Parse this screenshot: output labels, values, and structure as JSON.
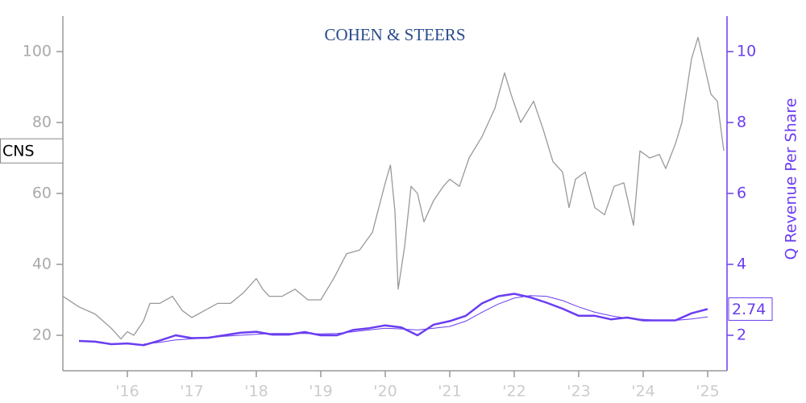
{
  "chart_data": {
    "type": "line",
    "logo": "COHEN & STEERS",
    "y2label": "Q Revenue Per Share",
    "xlim": [
      2015.0,
      2025.3
    ],
    "xticks": [
      {
        "value": 2016,
        "label": "'16"
      },
      {
        "value": 2017,
        "label": "'17"
      },
      {
        "value": 2018,
        "label": "'18"
      },
      {
        "value": 2019,
        "label": "'19"
      },
      {
        "value": 2020,
        "label": "'20"
      },
      {
        "value": 2021,
        "label": "'21"
      },
      {
        "value": 2022,
        "label": "'22"
      },
      {
        "value": 2023,
        "label": "'23"
      },
      {
        "value": 2024,
        "label": "'24"
      },
      {
        "value": 2025,
        "label": "'25"
      }
    ],
    "ylim": [
      10,
      110
    ],
    "yticks": [
      20,
      40,
      60,
      80,
      100
    ],
    "y2lim": [
      1,
      11
    ],
    "y2ticks": [
      2,
      4,
      6,
      8,
      10
    ],
    "series": [
      {
        "name": "CNS",
        "color": "#999999",
        "axis": "y",
        "x": [
          2015.0,
          2015.25,
          2015.5,
          2015.75,
          2015.9,
          2016.0,
          2016.1,
          2016.25,
          2016.35,
          2016.5,
          2016.7,
          2016.85,
          2017.0,
          2017.2,
          2017.4,
          2017.6,
          2017.8,
          2018.0,
          2018.1,
          2018.2,
          2018.4,
          2018.6,
          2018.8,
          2019.0,
          2019.2,
          2019.4,
          2019.6,
          2019.8,
          2019.9,
          2020.0,
          2020.08,
          2020.15,
          2020.2,
          2020.3,
          2020.4,
          2020.5,
          2020.6,
          2020.75,
          2020.9,
          2021.0,
          2021.15,
          2021.3,
          2021.5,
          2021.7,
          2021.85,
          2021.95,
          2022.1,
          2022.3,
          2022.45,
          2022.6,
          2022.75,
          2022.85,
          2022.95,
          2023.1,
          2023.25,
          2023.4,
          2023.55,
          2023.7,
          2023.85,
          2023.95,
          2024.1,
          2024.25,
          2024.35,
          2024.5,
          2024.6,
          2024.75,
          2024.85,
          2024.95,
          2025.05,
          2025.15,
          2025.25
        ],
        "values": [
          31,
          28,
          26,
          22,
          19,
          21,
          20,
          24,
          29,
          29,
          31,
          27,
          25,
          27,
          29,
          29,
          32,
          36,
          33,
          31,
          31,
          33,
          30,
          30,
          36,
          43,
          44,
          49,
          56,
          63,
          68,
          55,
          33,
          45,
          62,
          60,
          52,
          58,
          62,
          64,
          62,
          70,
          76,
          84,
          94,
          88,
          80,
          86,
          78,
          69,
          66,
          56,
          64,
          66,
          56,
          54,
          62,
          63,
          51,
          72,
          70,
          71,
          67,
          74,
          80,
          98,
          104,
          96,
          88,
          86,
          72
        ]
      },
      {
        "color": "#6a3df0",
        "axis": "y2",
        "width": 2.5,
        "x": [
          2015.25,
          2015.5,
          2015.75,
          2016.0,
          2016.25,
          2016.5,
          2016.75,
          2017.0,
          2017.25,
          2017.5,
          2017.75,
          2018.0,
          2018.25,
          2018.5,
          2018.75,
          2019.0,
          2019.25,
          2019.5,
          2019.75,
          2020.0,
          2020.25,
          2020.5,
          2020.75,
          2021.0,
          2021.25,
          2021.5,
          2021.75,
          2022.0,
          2022.25,
          2022.5,
          2022.75,
          2023.0,
          2023.25,
          2023.5,
          2023.75,
          2024.0,
          2024.25,
          2024.5,
          2024.75,
          2025.0
        ],
        "values": [
          1.84,
          1.82,
          1.75,
          1.77,
          1.72,
          1.85,
          2.0,
          1.92,
          1.93,
          2.0,
          2.07,
          2.1,
          2.02,
          2.02,
          2.09,
          2.0,
          2.0,
          2.15,
          2.2,
          2.28,
          2.22,
          2.0,
          2.3,
          2.4,
          2.55,
          2.9,
          3.1,
          3.17,
          3.07,
          2.92,
          2.75,
          2.55,
          2.55,
          2.45,
          2.5,
          2.42,
          2.42,
          2.42,
          2.62,
          2.74
        ]
      },
      {
        "color": "#6a3df0",
        "axis": "y2",
        "width": 1,
        "x": [
          2016.25,
          2016.5,
          2016.75,
          2017.0,
          2017.25,
          2017.5,
          2017.75,
          2018.0,
          2018.25,
          2018.5,
          2018.75,
          2019.0,
          2019.25,
          2019.5,
          2019.75,
          2020.0,
          2020.25,
          2020.5,
          2020.75,
          2021.0,
          2021.25,
          2021.5,
          2021.75,
          2022.0,
          2022.25,
          2022.5,
          2022.75,
          2023.0,
          2023.25,
          2023.5,
          2023.75,
          2024.0,
          2024.25,
          2024.5,
          2024.75,
          2025.0
        ],
        "values": [
          1.75,
          1.8,
          1.87,
          1.9,
          1.93,
          1.97,
          2.0,
          2.03,
          2.05,
          2.05,
          2.05,
          2.04,
          2.05,
          2.1,
          2.15,
          2.2,
          2.18,
          2.15,
          2.2,
          2.25,
          2.4,
          2.65,
          2.88,
          3.05,
          3.12,
          3.1,
          2.98,
          2.8,
          2.65,
          2.55,
          2.48,
          2.45,
          2.42,
          2.42,
          2.46,
          2.52
        ]
      }
    ]
  }
}
